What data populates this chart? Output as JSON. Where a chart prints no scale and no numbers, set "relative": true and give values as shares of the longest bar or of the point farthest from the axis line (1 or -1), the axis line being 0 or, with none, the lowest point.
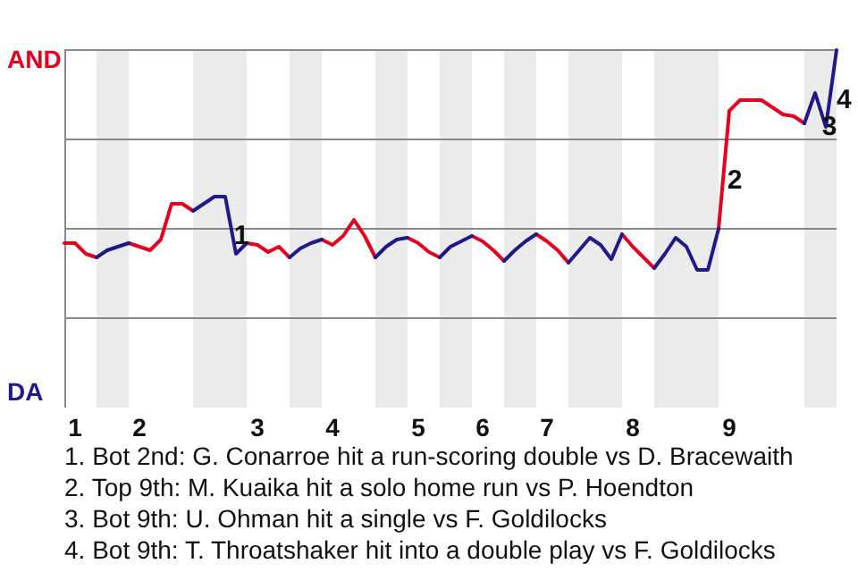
{
  "chart_data": {
    "type": "line",
    "relative": true,
    "grid": true,
    "categories": [
      null,
      "1",
      null,
      null,
      null,
      null,
      null,
      "2",
      null,
      null,
      null,
      null,
      null,
      null,
      null,
      null,
      null,
      null,
      "3",
      null,
      null,
      null,
      null,
      null,
      null,
      "4",
      null,
      null,
      null,
      null,
      null,
      null,
      null,
      "5",
      null,
      null,
      null,
      null,
      null,
      "6",
      null,
      null,
      null,
      null,
      null,
      "7",
      null,
      null,
      null,
      null,
      null,
      null,
      null,
      "8",
      null,
      null,
      null,
      null,
      null,
      null,
      null,
      null,
      "9",
      null,
      null,
      null,
      null,
      null,
      null,
      null,
      null,
      null,
      null
    ],
    "series": [
      {
        "name": "AND",
        "color": "#e6001e",
        "values": [
          0.46,
          0.46,
          0.43,
          0.42,
          null,
          null,
          0.46,
          0.45,
          0.44,
          0.47,
          0.57,
          0.57,
          0.55,
          null,
          null,
          null,
          null,
          0.46,
          0.455,
          0.435,
          0.45,
          0.42,
          null,
          null,
          0.47,
          0.455,
          0.48,
          0.525,
          0.48,
          0.42,
          null,
          null,
          0.475,
          0.46,
          0.435,
          0.42,
          null,
          null,
          0.48,
          0.465,
          0.44,
          0.41,
          null,
          null,
          0.485,
          0.465,
          0.44,
          0.405,
          null,
          null,
          null,
          null,
          0.485,
          0.45,
          0.42,
          0.39,
          null,
          null,
          null,
          null,
          null,
          0.5,
          0.83,
          0.86,
          0.86,
          0.86,
          0.84,
          0.82,
          0.815,
          0.795,
          null,
          null,
          null
        ]
      },
      {
        "name": "DA",
        "color": "#1f1a8a",
        "values": [
          null,
          null,
          null,
          0.42,
          0.44,
          0.45,
          0.46,
          null,
          null,
          null,
          null,
          null,
          0.55,
          0.57,
          0.59,
          0.59,
          0.43,
          0.46,
          null,
          null,
          null,
          0.42,
          0.445,
          0.46,
          0.47,
          null,
          null,
          null,
          null,
          0.42,
          0.45,
          0.47,
          0.475,
          null,
          null,
          0.42,
          0.45,
          0.465,
          0.48,
          null,
          null,
          0.41,
          0.44,
          0.465,
          0.485,
          null,
          null,
          0.405,
          0.44,
          0.475,
          0.455,
          0.415,
          0.485,
          null,
          null,
          0.39,
          0.43,
          0.475,
          0.45,
          0.385,
          0.385,
          0.5,
          null,
          null,
          null,
          null,
          null,
          null,
          null,
          0.795,
          0.88,
          0.785,
          1
        ]
      }
    ],
    "annotations": [
      "1",
      "2",
      "3",
      "4",
      "1. Bot 2nd: G. Conarroe hit a run-scoring double vs D. Bracewaith",
      "2. Top 9th: M. Kuaika hit a solo home run vs P. Hoendton",
      "3. Bot 9th: U. Ohman hit a single vs F. Goldilocks",
      "4. Bot 9th: T. Throatshaker hit into a double play vs F. Goldilocks"
    ]
  }
}
